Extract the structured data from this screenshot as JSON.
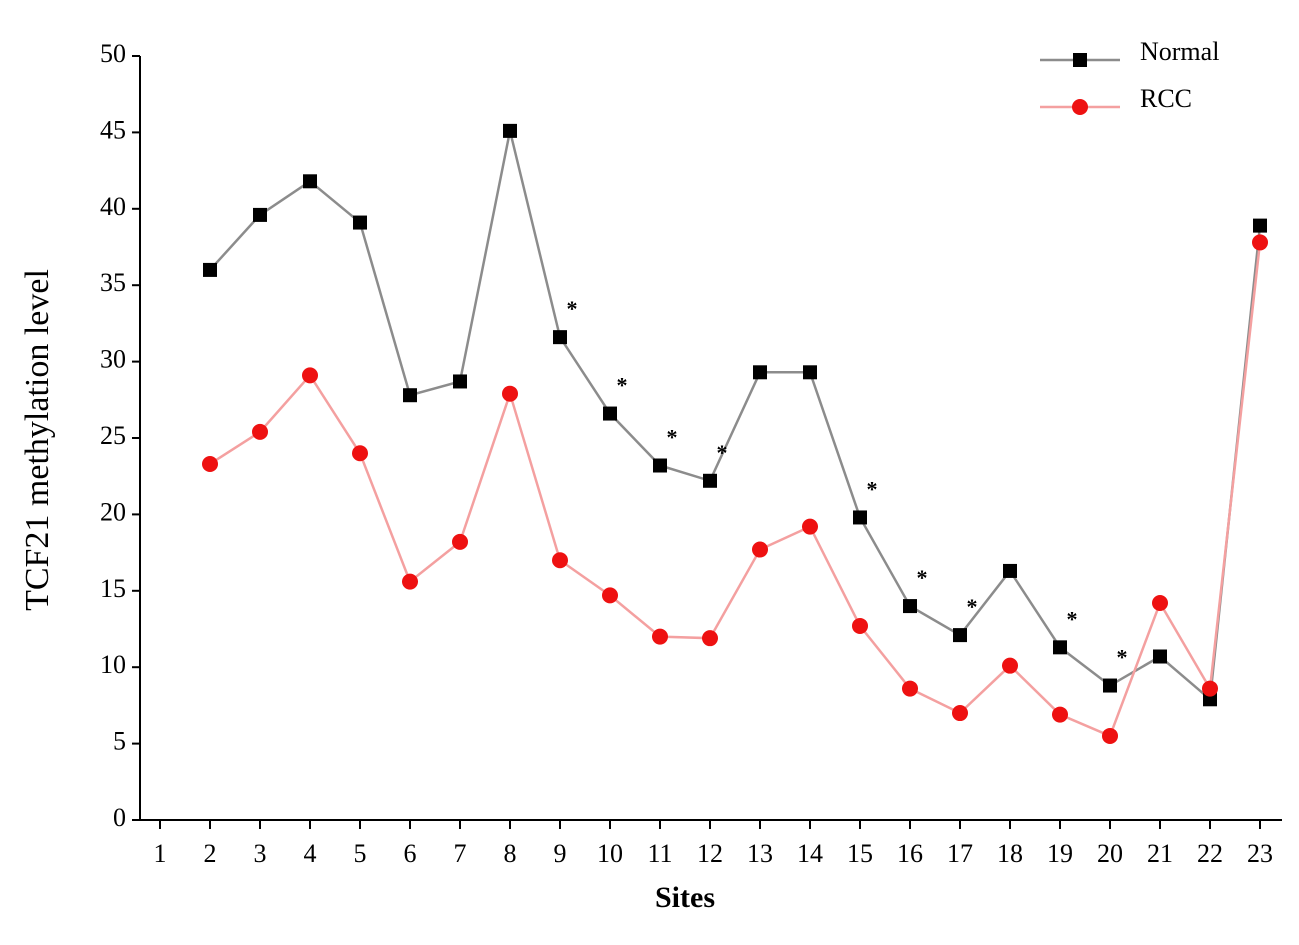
{
  "chart_data": {
    "type": "line",
    "xlabel": "Sites",
    "ylabel": "TCF21 methylation level",
    "categories": [
      "1",
      "2",
      "3",
      "4",
      "5",
      "6",
      "7",
      "8",
      "9",
      "10",
      "11",
      "12",
      "13",
      "14",
      "15",
      "16",
      "17",
      "18",
      "19",
      "20",
      "21",
      "22",
      "23"
    ],
    "series": [
      {
        "name": "Normal",
        "color": "#000000",
        "line_color": "#8c8c8c",
        "marker": "square",
        "values": [
          null,
          36.0,
          39.6,
          41.8,
          39.1,
          27.8,
          28.7,
          45.1,
          31.6,
          26.6,
          23.2,
          22.2,
          29.3,
          29.3,
          19.8,
          14.0,
          12.1,
          16.3,
          11.3,
          8.8,
          10.7,
          7.9,
          38.9
        ]
      },
      {
        "name": "RCC",
        "color": "#ee1111",
        "line_color": "#f4a0a0",
        "marker": "circle",
        "values": [
          null,
          23.3,
          25.4,
          29.1,
          24.0,
          15.6,
          18.2,
          27.9,
          17.0,
          14.7,
          12.0,
          11.9,
          17.7,
          19.2,
          12.7,
          8.6,
          7.0,
          10.1,
          6.9,
          5.5,
          14.2,
          8.6,
          37.8
        ]
      }
    ],
    "annotations": [
      "*",
      "*",
      "*",
      "*",
      "*",
      "*",
      "*",
      "*",
      "*"
    ],
    "annotation_categories": [
      "9",
      "10",
      "11",
      "12",
      "15",
      "16",
      "17",
      "19",
      "20"
    ],
    "ylim": [
      0,
      50
    ],
    "yticks": [
      0,
      5,
      10,
      15,
      20,
      25,
      30,
      35,
      40,
      45,
      50
    ],
    "legend": "upper right"
  }
}
